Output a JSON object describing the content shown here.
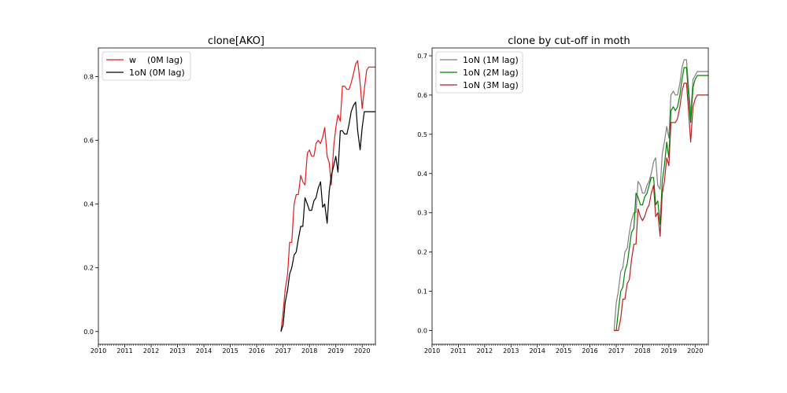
{
  "chart_data": [
    {
      "type": "line",
      "title": "clone[AKO]",
      "xlabel": "",
      "ylabel": "",
      "xlim": [
        2010.0,
        2020.5
      ],
      "ylim": [
        -0.04,
        0.89
      ],
      "x_ticks": [
        "2010",
        "2011",
        "2012",
        "2013",
        "2014",
        "2015",
        "2016",
        "2017",
        "2018",
        "2019",
        "2020"
      ],
      "y_ticks": [
        "0.0",
        "0.2",
        "0.4",
        "0.6",
        "0.8"
      ],
      "legend_position": "top-left",
      "series": [
        {
          "name": "w    (0M lag)",
          "color": "#e41a1c",
          "x": [
            2016.92,
            2017.0,
            2017.08,
            2017.17,
            2017.25,
            2017.33,
            2017.42,
            2017.5,
            2017.58,
            2017.67,
            2017.75,
            2017.83,
            2017.92,
            2018.0,
            2018.08,
            2018.17,
            2018.25,
            2018.33,
            2018.42,
            2018.5,
            2018.58,
            2018.67,
            2018.75,
            2018.83,
            2018.92,
            2019.0,
            2019.08,
            2019.17,
            2019.25,
            2019.33,
            2019.42,
            2019.5,
            2019.58,
            2019.67,
            2019.75,
            2019.83,
            2019.92,
            2020.0,
            2020.08,
            2020.17,
            2020.25,
            2020.33,
            2020.42,
            2020.5
          ],
          "y": [
            0.0,
            0.06,
            0.13,
            0.18,
            0.28,
            0.28,
            0.4,
            0.43,
            0.43,
            0.49,
            0.47,
            0.46,
            0.56,
            0.57,
            0.55,
            0.55,
            0.59,
            0.6,
            0.59,
            0.61,
            0.64,
            0.55,
            0.53,
            0.46,
            0.58,
            0.64,
            0.68,
            0.66,
            0.77,
            0.77,
            0.76,
            0.76,
            0.78,
            0.81,
            0.84,
            0.85,
            0.78,
            0.7,
            0.76,
            0.82,
            0.83,
            0.83,
            0.83,
            0.83
          ]
        },
        {
          "name": "1oN (0M lag)",
          "color": "#000000",
          "x": [
            2016.92,
            2017.0,
            2017.08,
            2017.17,
            2017.25,
            2017.33,
            2017.42,
            2017.5,
            2017.58,
            2017.67,
            2017.75,
            2017.83,
            2017.92,
            2018.0,
            2018.08,
            2018.17,
            2018.25,
            2018.33,
            2018.42,
            2018.5,
            2018.58,
            2018.67,
            2018.75,
            2018.83,
            2018.92,
            2019.0,
            2019.08,
            2019.17,
            2019.25,
            2019.33,
            2019.42,
            2019.5,
            2019.58,
            2019.67,
            2019.75,
            2019.83,
            2019.92,
            2020.0,
            2020.08,
            2020.17,
            2020.25,
            2020.33,
            2020.42,
            2020.5
          ],
          "y": [
            0.0,
            0.02,
            0.09,
            0.13,
            0.18,
            0.2,
            0.24,
            0.25,
            0.29,
            0.33,
            0.33,
            0.42,
            0.4,
            0.38,
            0.38,
            0.41,
            0.42,
            0.45,
            0.47,
            0.39,
            0.4,
            0.34,
            0.44,
            0.49,
            0.52,
            0.55,
            0.5,
            0.63,
            0.63,
            0.62,
            0.62,
            0.65,
            0.69,
            0.71,
            0.72,
            0.63,
            0.57,
            0.64,
            0.69,
            0.69,
            0.69,
            0.69,
            0.69,
            0.69
          ]
        }
      ]
    },
    {
      "type": "line",
      "title": "clone by cut-off in moth",
      "xlabel": "",
      "ylabel": "",
      "xlim": [
        2010.0,
        2020.5
      ],
      "ylim": [
        -0.035,
        0.72
      ],
      "x_ticks": [
        "2010",
        "2011",
        "2012",
        "2013",
        "2014",
        "2015",
        "2016",
        "2017",
        "2018",
        "2019",
        "2020"
      ],
      "y_ticks": [
        "0.0",
        "0.1",
        "0.2",
        "0.3",
        "0.4",
        "0.5",
        "0.6",
        "0.7"
      ],
      "legend_position": "top-left",
      "series": [
        {
          "name": "1oN (1M lag)",
          "color": "#808080",
          "x": [
            2016.92,
            2017.0,
            2017.08,
            2017.17,
            2017.25,
            2017.33,
            2017.42,
            2017.5,
            2017.58,
            2017.67,
            2017.75,
            2017.83,
            2017.92,
            2018.0,
            2018.08,
            2018.17,
            2018.25,
            2018.33,
            2018.42,
            2018.5,
            2018.58,
            2018.67,
            2018.75,
            2018.83,
            2018.92,
            2019.0,
            2019.08,
            2019.17,
            2019.25,
            2019.33,
            2019.42,
            2019.5,
            2019.58,
            2019.67,
            2019.75,
            2019.83,
            2019.92,
            2020.0,
            2020.08,
            2020.17,
            2020.25,
            2020.33,
            2020.42,
            2020.5
          ],
          "y": [
            0.0,
            0.07,
            0.1,
            0.15,
            0.16,
            0.2,
            0.21,
            0.25,
            0.28,
            0.3,
            0.3,
            0.38,
            0.37,
            0.35,
            0.35,
            0.37,
            0.38,
            0.4,
            0.43,
            0.44,
            0.37,
            0.36,
            0.45,
            0.48,
            0.52,
            0.49,
            0.6,
            0.61,
            0.6,
            0.6,
            0.63,
            0.67,
            0.69,
            0.69,
            0.62,
            0.55,
            0.64,
            0.65,
            0.66,
            0.66,
            0.66,
            0.66,
            0.66,
            0.66
          ]
        },
        {
          "name": "1oN (2M lag)",
          "color": "#008000",
          "x": [
            2016.92,
            2017.0,
            2017.08,
            2017.17,
            2017.25,
            2017.33,
            2017.42,
            2017.5,
            2017.58,
            2017.67,
            2017.75,
            2017.83,
            2017.92,
            2018.0,
            2018.08,
            2018.17,
            2018.25,
            2018.33,
            2018.42,
            2018.5,
            2018.58,
            2018.67,
            2018.75,
            2018.83,
            2018.92,
            2019.0,
            2019.08,
            2019.17,
            2019.25,
            2019.33,
            2019.42,
            2019.5,
            2019.58,
            2019.67,
            2019.75,
            2019.83,
            2019.92,
            2020.0,
            2020.08,
            2020.17,
            2020.25,
            2020.33,
            2020.42,
            2020.5
          ],
          "y": [
            0.0,
            0.0,
            0.05,
            0.1,
            0.11,
            0.15,
            0.17,
            0.21,
            0.25,
            0.26,
            0.35,
            0.34,
            0.32,
            0.32,
            0.34,
            0.35,
            0.37,
            0.39,
            0.39,
            0.32,
            0.33,
            0.27,
            0.38,
            0.42,
            0.48,
            0.44,
            0.56,
            0.57,
            0.56,
            0.57,
            0.6,
            0.64,
            0.67,
            0.67,
            0.6,
            0.53,
            0.62,
            0.64,
            0.65,
            0.65,
            0.65,
            0.65,
            0.65,
            0.65
          ]
        },
        {
          "name": "1oN (3M lag)",
          "color": "#b22222",
          "x": [
            2016.92,
            2017.0,
            2017.08,
            2017.17,
            2017.25,
            2017.33,
            2017.42,
            2017.5,
            2017.58,
            2017.67,
            2017.75,
            2017.83,
            2017.92,
            2018.0,
            2018.08,
            2018.17,
            2018.25,
            2018.33,
            2018.42,
            2018.5,
            2018.58,
            2018.67,
            2018.75,
            2018.83,
            2018.92,
            2019.0,
            2019.08,
            2019.17,
            2019.25,
            2019.33,
            2019.42,
            2019.5,
            2019.58,
            2019.67,
            2019.75,
            2019.83,
            2019.92,
            2020.0,
            2020.08,
            2020.17,
            2020.25,
            2020.33,
            2020.42,
            2020.5
          ],
          "y": [
            0.0,
            0.0,
            0.0,
            0.03,
            0.08,
            0.08,
            0.12,
            0.13,
            0.18,
            0.22,
            0.22,
            0.31,
            0.29,
            0.28,
            0.29,
            0.31,
            0.32,
            0.35,
            0.37,
            0.29,
            0.3,
            0.24,
            0.35,
            0.38,
            0.44,
            0.42,
            0.53,
            0.53,
            0.53,
            0.54,
            0.57,
            0.61,
            0.63,
            0.63,
            0.56,
            0.48,
            0.57,
            0.59,
            0.6,
            0.6,
            0.6,
            0.6,
            0.6,
            0.6
          ]
        }
      ]
    }
  ]
}
